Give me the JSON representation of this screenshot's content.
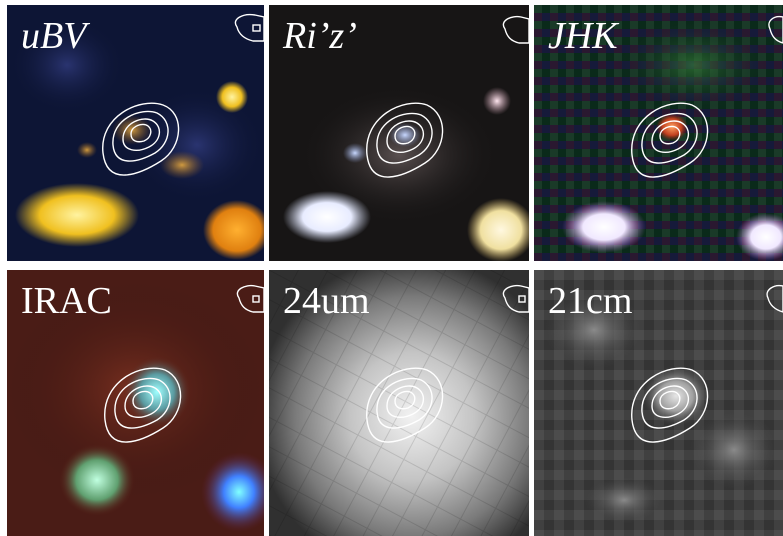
{
  "panels": [
    {
      "label": "uBV",
      "italic": true
    },
    {
      "label": "Ri’z’",
      "italic": true
    },
    {
      "label": "JHK",
      "italic": true
    },
    {
      "label": "IRAC",
      "italic": false
    },
    {
      "label": "24um",
      "italic": false
    },
    {
      "label": "21cm",
      "italic": false
    }
  ]
}
